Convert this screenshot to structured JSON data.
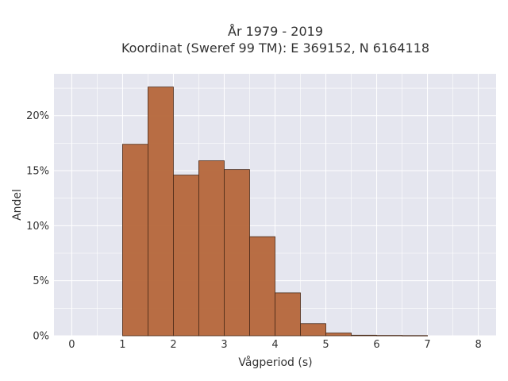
{
  "chart_data": {
    "type": "bar",
    "title": "År 1979 - 2019",
    "subtitle": "Koordinat (Sweref 99 TM): E 369152, N 6164118",
    "xlabel": "Vågperiod (s)",
    "ylabel": "Andel",
    "bin_width": 0.5,
    "bins_start": [
      1.0,
      1.5,
      2.0,
      2.5,
      3.0,
      3.5,
      4.0,
      4.5,
      5.0,
      5.5,
      6.0,
      6.5
    ],
    "values": [
      17.4,
      22.6,
      14.6,
      15.9,
      15.1,
      9.0,
      3.9,
      1.1,
      0.25,
      0.05,
      0.03,
      0.02
    ],
    "xlim": [
      -0.35,
      8.35
    ],
    "ylim": [
      0,
      23.8
    ],
    "xticks": [
      0,
      1,
      2,
      3,
      4,
      5,
      6,
      7,
      8
    ],
    "xtick_labels": [
      "0",
      "1",
      "2",
      "3",
      "4",
      "5",
      "6",
      "7",
      "8"
    ],
    "yticks": [
      0,
      5,
      10,
      15,
      20
    ],
    "ytick_labels": [
      "0%",
      "5%",
      "10%",
      "15%",
      "20%"
    ],
    "grid": true,
    "colors": {
      "bar_fill": "#b5663a",
      "bar_edge": "#4a2a18",
      "plot_bg": "#e5e6ef",
      "grid": "#ffffff"
    }
  }
}
